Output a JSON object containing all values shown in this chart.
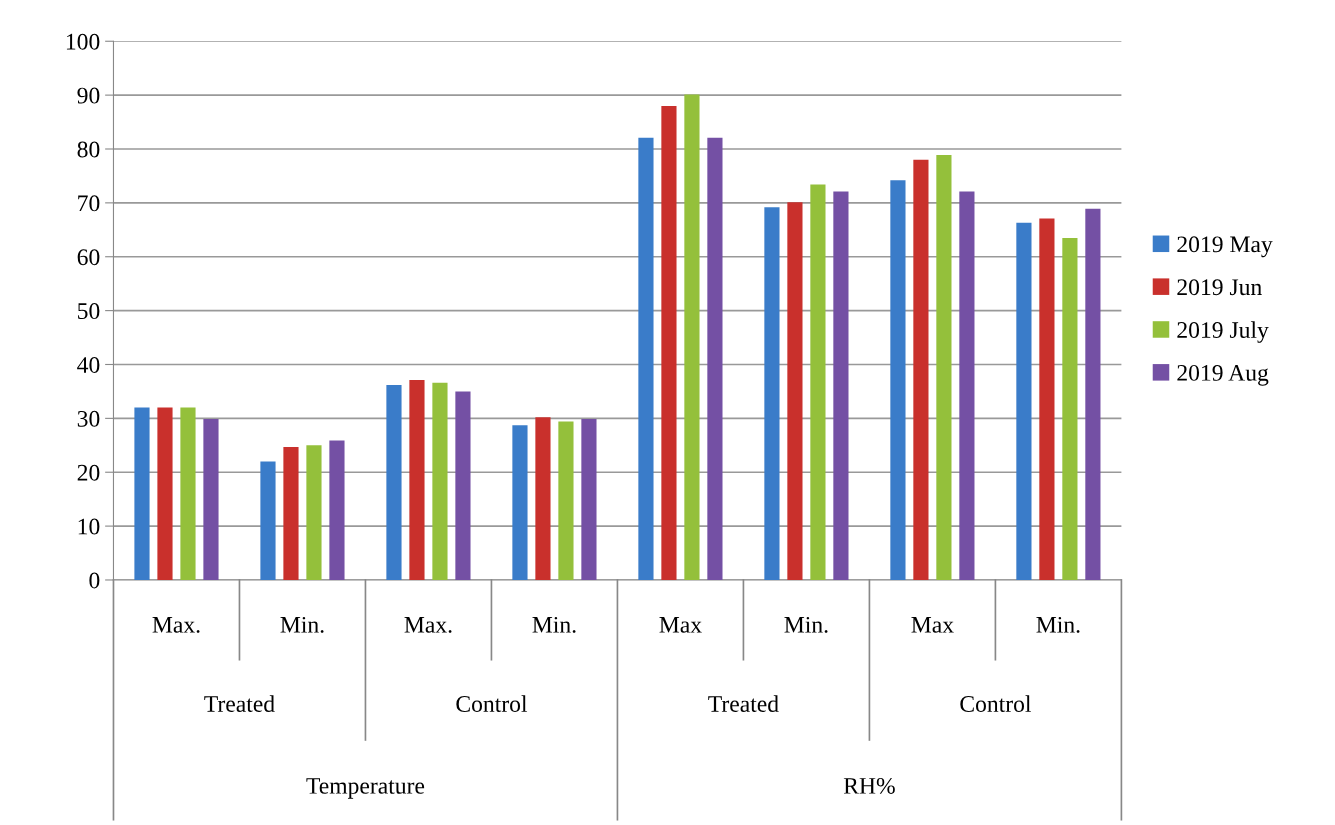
{
  "chart_data": {
    "type": "bar",
    "categories": [
      "Max.",
      "Min.",
      "Max.",
      "Min.",
      "Max",
      "Min.",
      "Max",
      "Min."
    ],
    "series": [
      {
        "name": "2019 May",
        "color": "#3a7cc9",
        "values": [
          32,
          22,
          36.2,
          28.7,
          82.1,
          69.2,
          74.2,
          66.3
        ]
      },
      {
        "name": "2019 Jun",
        "color": "#c9302c",
        "values": [
          32,
          24.7,
          37.1,
          30.2,
          88.0,
          70.1,
          78.0,
          67.1
        ]
      },
      {
        "name": "2019 July",
        "color": "#94c03b",
        "values": [
          32,
          25,
          36.6,
          29.4,
          90.1,
          73.4,
          78.9,
          63.5
        ]
      },
      {
        "name": "2019 Aug",
        "color": "#7450a4",
        "values": [
          29.9,
          25.9,
          35.0,
          29.9,
          82.1,
          72.1,
          72.1,
          68.9
        ]
      }
    ],
    "annotations": [
      "Treated",
      "Control",
      "Treated",
      "Control",
      "Temperature",
      "RH%"
    ],
    "ylim": [
      0,
      100
    ],
    "yticks": [
      0,
      10,
      20,
      30,
      40,
      50,
      60,
      70,
      80,
      90,
      100
    ],
    "grid": "y",
    "legend": "right"
  }
}
